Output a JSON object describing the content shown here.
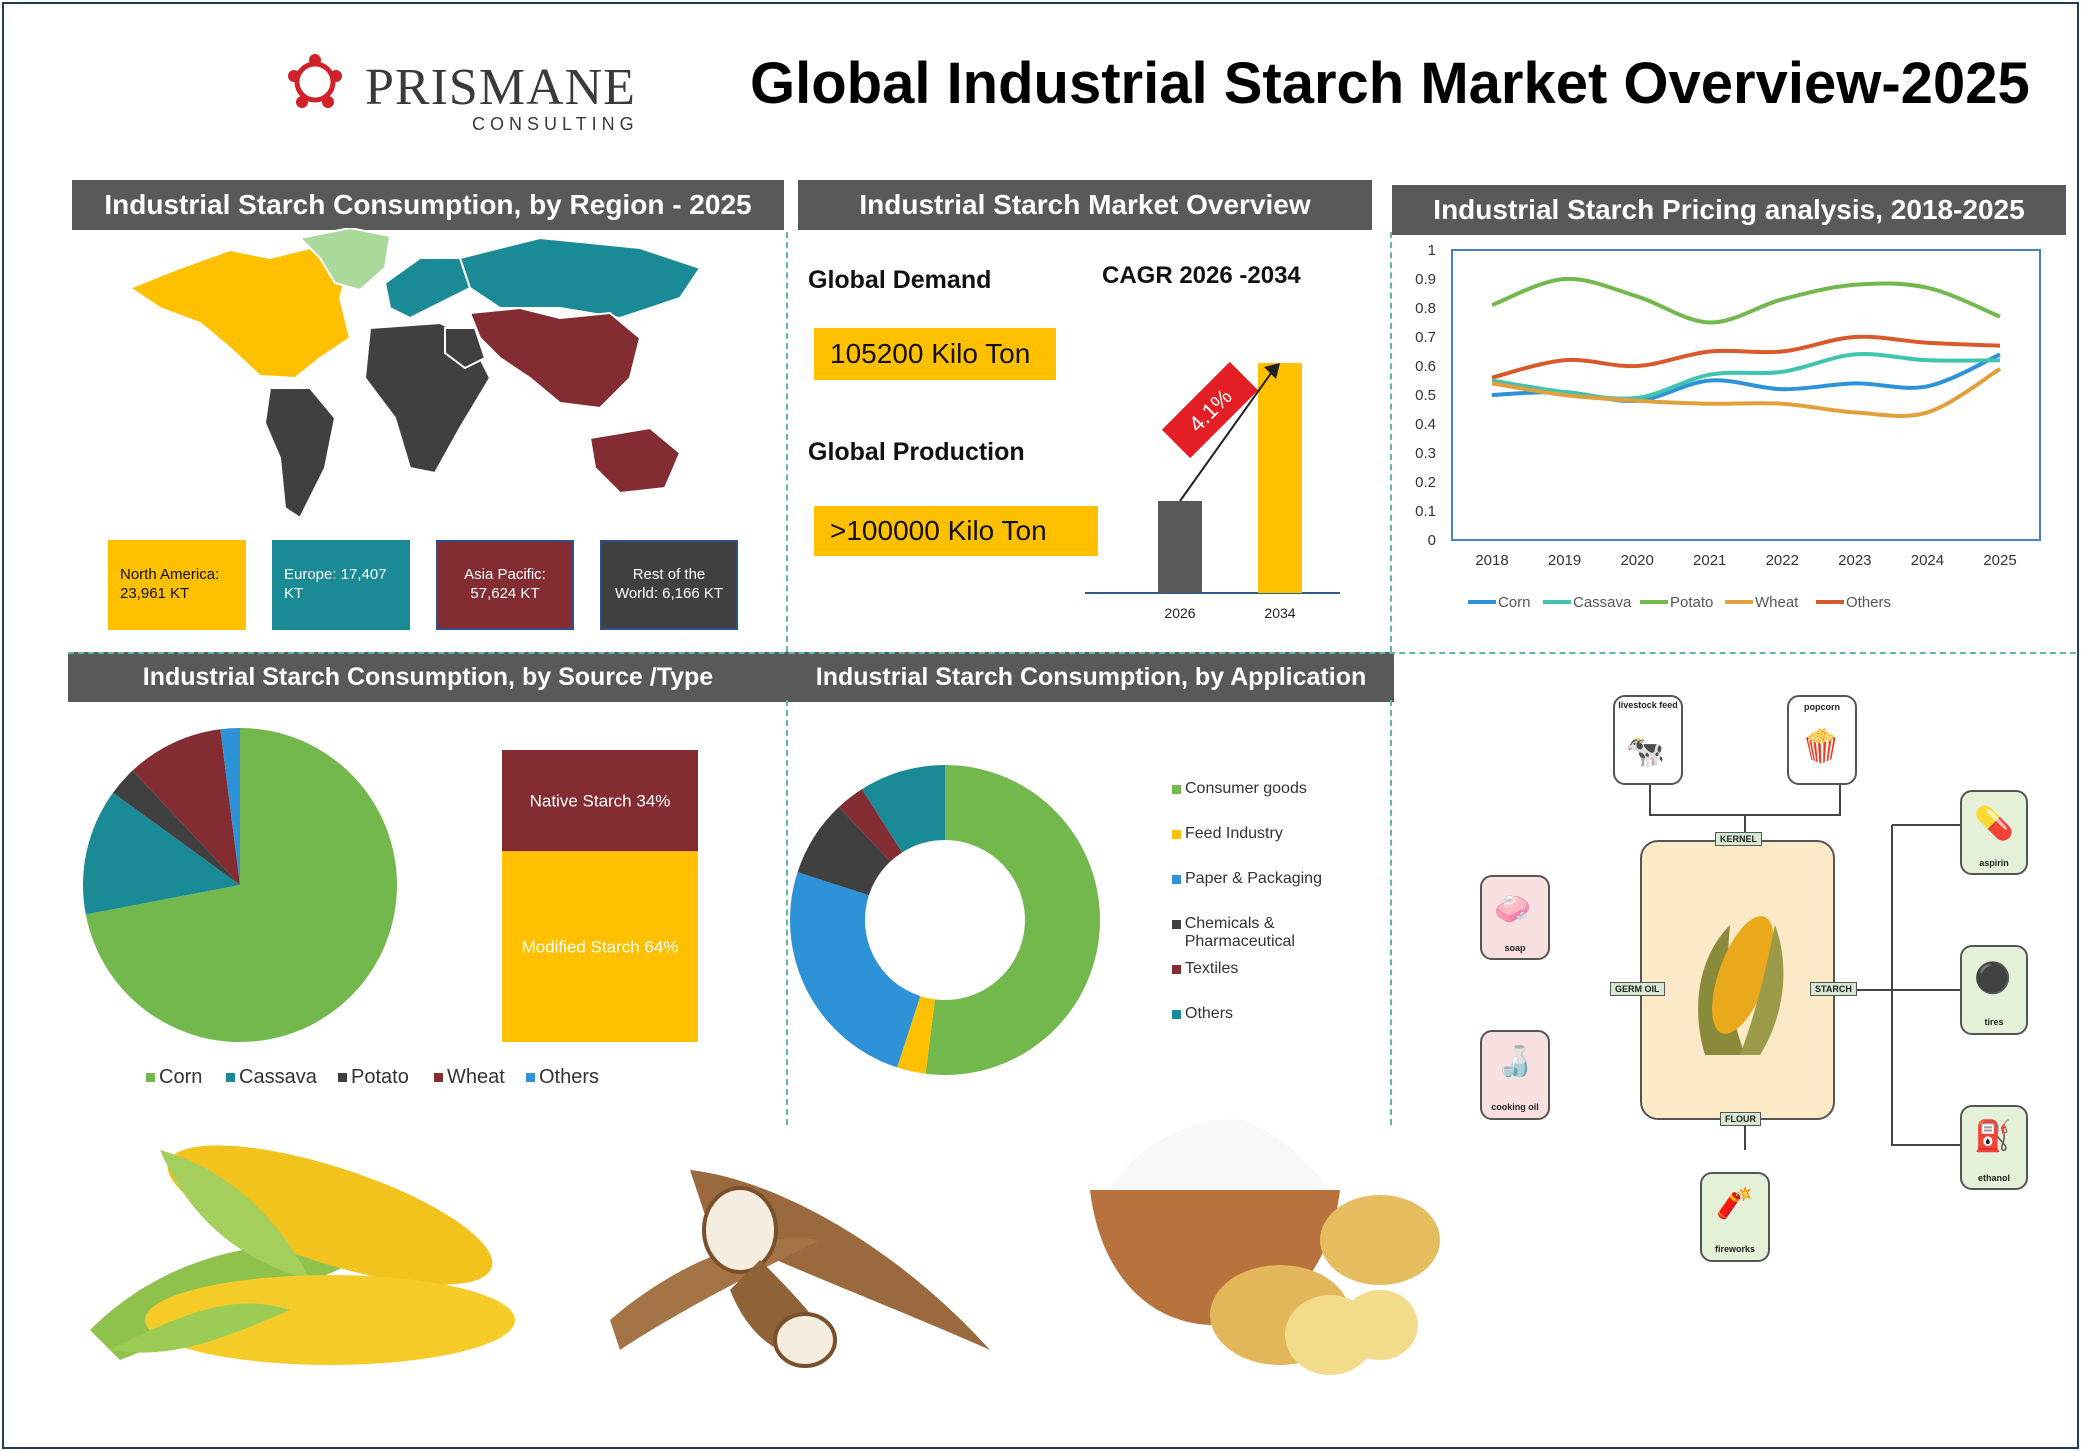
{
  "page": {
    "title": "Global Industrial Starch Market Overview-2025",
    "logo": {
      "name": "PRISMANE",
      "subtitle": "CONSULTING"
    }
  },
  "sections": {
    "region": "Industrial Starch Consumption, by Region - 2025",
    "overview": "Industrial Starch Market Overview",
    "pricing": "Industrial Starch Pricing analysis, 2018-2025",
    "source": "Industrial Starch Consumption, by Source /Type",
    "application": "Industrial Starch Consumption, by Application"
  },
  "regions": [
    {
      "label": "North America: 23,961 KT",
      "color": "#ffc000"
    },
    {
      "label": "Europe: 17,407 KT",
      "color": "#1a8b96"
    },
    {
      "label": "Asia Pacific: 57,624 KT",
      "color": "#832c32"
    },
    {
      "label": "Rest of the World: 6,166 KT",
      "color": "#404040"
    }
  ],
  "overview": {
    "demand_label": "Global Demand",
    "demand_value": "105200 Kilo Ton",
    "production_label": "Global Production",
    "production_value": ">100000 Kilo Ton",
    "cagr_label": "CAGR 2026 -2034",
    "cagr_value": "4.1%"
  },
  "diagram": {
    "center": "KERNEL",
    "tags": {
      "kernel": "KERNEL",
      "germ_oil": "GERM OIL",
      "starch": "STARCH",
      "flour": "FLOUR"
    },
    "items": {
      "livestock": "livestock feed",
      "popcorn": "popcorn",
      "aspirin": "aspirin",
      "soap": "soap",
      "tires": "tires",
      "cooking_oil": "cooking oil",
      "ethanol": "ethanol",
      "fireworks": "fireworks"
    }
  },
  "chart_data": [
    {
      "type": "bar",
      "categories": [
        "2026",
        "2034"
      ],
      "values": [
        0.6,
        1.5
      ],
      "colors": [
        "#595959",
        "#ffc000"
      ],
      "annotation": "4.1%"
    },
    {
      "type": "line",
      "x": [
        2018,
        2019,
        2020,
        2021,
        2022,
        2023,
        2024,
        2025
      ],
      "ylim": [
        0,
        1
      ],
      "yticks": [
        "0",
        "0.1",
        "0.2",
        "0.3",
        "0.4",
        "0.5",
        "0.6",
        "0.7",
        "0.8",
        "0.9",
        "1"
      ],
      "series": [
        {
          "name": "Corn",
          "color": "#2e92d8",
          "values": [
            0.5,
            0.51,
            0.48,
            0.55,
            0.52,
            0.54,
            0.53,
            0.64
          ]
        },
        {
          "name": "Cassava",
          "color": "#41c3b1",
          "values": [
            0.55,
            0.51,
            0.49,
            0.57,
            0.58,
            0.64,
            0.62,
            0.62
          ]
        },
        {
          "name": "Potato",
          "color": "#72b84c",
          "values": [
            0.81,
            0.9,
            0.84,
            0.75,
            0.83,
            0.88,
            0.87,
            0.77
          ]
        },
        {
          "name": "Wheat",
          "color": "#e2a03c",
          "values": [
            0.54,
            0.5,
            0.48,
            0.47,
            0.47,
            0.44,
            0.44,
            0.59
          ]
        },
        {
          "name": "Others",
          "color": "#d85a2a",
          "values": [
            0.56,
            0.62,
            0.6,
            0.65,
            0.65,
            0.7,
            0.68,
            0.67
          ]
        }
      ]
    },
    {
      "type": "pie",
      "categories": [
        "Corn",
        "Cassava",
        "Potato",
        "Wheat",
        "Others"
      ],
      "values": [
        72,
        13,
        3,
        10,
        2
      ],
      "colors": [
        "#72b84c",
        "#1a8b96",
        "#404040",
        "#832c32",
        "#2e92d8"
      ]
    },
    {
      "type": "bar",
      "stacked": true,
      "categories": [
        "Native Starch 34%",
        "Modified Starch 64%"
      ],
      "values": [
        34,
        64
      ],
      "colors": [
        "#832c32",
        "#ffc000"
      ]
    },
    {
      "type": "pie",
      "donut": true,
      "categories": [
        "Consumer goods",
        "Feed Industry",
        "Paper & Packaging",
        "Chemicals & Pharmaceutical",
        "Textiles",
        "Others"
      ],
      "values": [
        52,
        3,
        25,
        8,
        3,
        9
      ],
      "colors": [
        "#72b84c",
        "#ffc000",
        "#2e92d8",
        "#404040",
        "#832c32",
        "#1a8b96"
      ]
    }
  ]
}
